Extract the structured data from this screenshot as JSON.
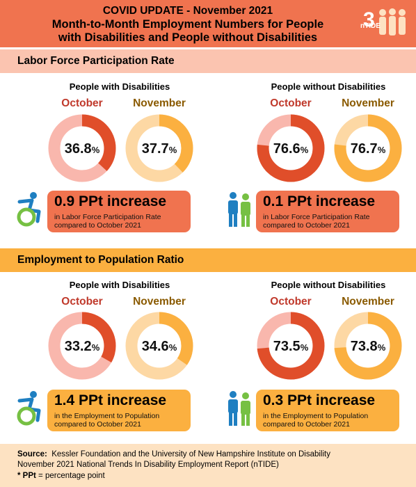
{
  "header": {
    "title_line1": "COVID UPDATE - November 2021",
    "title_line2": "Month-to-Month Employment Numbers for People",
    "title_line3": "with Disabilities and People without Disabilities",
    "logo_text": "nTIDE"
  },
  "colors": {
    "header": "#f0734f",
    "band1": "#fbc4b0",
    "band2": "#fbb040",
    "october_fill": "#e04e2a",
    "october_track": "#f9b7ad",
    "november_fill": "#fbb040",
    "november_track": "#fdd8a4",
    "callout_lfpr": "#f0734f",
    "callout_epop": "#fbb040",
    "october_label": "#c0392b",
    "november_label": "#8a5a00"
  },
  "sections": [
    {
      "title": "Labor Force Participation Rate",
      "groups": [
        {
          "label": "People with Disabilities",
          "months": [
            {
              "name": "October",
              "value": "36.8",
              "percent": 36.8
            },
            {
              "name": "November",
              "value": "37.7",
              "percent": 37.7
            }
          ],
          "callout_big": "0.9 PPt increase",
          "callout_small_1": "in Labor Force Participation Rate",
          "callout_small_2": "compared to October 2021",
          "icon": "wheelchair-icon"
        },
        {
          "label": "People without Disabilities",
          "months": [
            {
              "name": "October",
              "value": "76.6",
              "percent": 76.6
            },
            {
              "name": "November",
              "value": "76.7",
              "percent": 76.7
            }
          ],
          "callout_big": "0.1 PPt increase",
          "callout_small_1": "in Labor Force Participation Rate",
          "callout_small_2": "compared to October 2021",
          "icon": "people-icon"
        }
      ]
    },
    {
      "title": "Employment to Population Ratio",
      "groups": [
        {
          "label": "People with Disabilities",
          "months": [
            {
              "name": "October",
              "value": "33.2",
              "percent": 33.2
            },
            {
              "name": "November",
              "value": "34.6",
              "percent": 34.6
            }
          ],
          "callout_big": "1.4 PPt increase",
          "callout_small_1": "in the Employment to Population",
          "callout_small_2": "compared to October 2021",
          "icon": "wheelchair-icon"
        },
        {
          "label": "People without Disabilities",
          "months": [
            {
              "name": "October",
              "value": "73.5",
              "percent": 73.5
            },
            {
              "name": "November",
              "value": "73.8",
              "percent": 73.8
            }
          ],
          "callout_big": "0.3 PPt increase",
          "callout_small_1": "in the Employment to Population",
          "callout_small_2": "compared to October 2021",
          "icon": "people-icon"
        }
      ]
    }
  ],
  "footer": {
    "source_label": "Source:",
    "source_text": "Kessler Foundation and the University of New Hampshire Institute on Disability",
    "report_text": "November 2021 National Trends In Disability Employment Report (nTIDE)",
    "ppt_label": "* PPt",
    "ppt_text": "= percentage point"
  },
  "chart_data": [
    {
      "type": "pie",
      "title": "Labor Force Participation Rate",
      "series": [
        {
          "name": "People with Disabilities",
          "categories": [
            "October",
            "November"
          ],
          "values": [
            36.8,
            37.7
          ]
        },
        {
          "name": "People without Disabilities",
          "categories": [
            "October",
            "November"
          ],
          "values": [
            76.6,
            76.7
          ]
        }
      ]
    },
    {
      "type": "pie",
      "title": "Employment to Population Ratio",
      "series": [
        {
          "name": "People with Disabilities",
          "categories": [
            "October",
            "November"
          ],
          "values": [
            33.2,
            34.6
          ]
        },
        {
          "name": "People without Disabilities",
          "categories": [
            "October",
            "November"
          ],
          "values": [
            73.5,
            73.8
          ]
        }
      ]
    }
  ]
}
